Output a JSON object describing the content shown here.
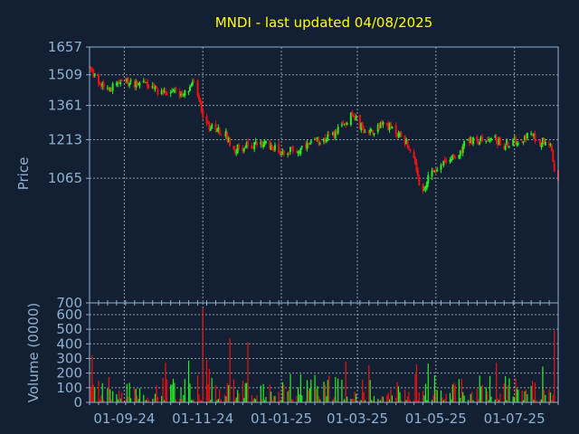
{
  "chart_data": {
    "type": "candlestick",
    "title": "MNDI - last updated 04/08/2025",
    "colors": {
      "background": "#132034",
      "axes": "#8fb0d0",
      "grid": "#ffffff",
      "title": "#ffff00",
      "up": "#22ee22",
      "down": "#ee1111"
    },
    "price_panel": {
      "ylabel": "Price",
      "yticks": [
        700,
        1065,
        1213,
        1361,
        1509,
        1657
      ],
      "grid": true,
      "scale": "log",
      "ylim": [
        700,
        1657
      ]
    },
    "volume_panel": {
      "ylabel": "Volume (0000)",
      "yticks": [
        0,
        100,
        200,
        300,
        400,
        500,
        600
      ],
      "ylim": [
        0,
        680
      ],
      "grid": true
    },
    "xticks": [
      "01-09-24",
      "01-11-24",
      "01-01-25",
      "01-03-25",
      "01-05-25",
      "01-07-25"
    ],
    "x_start": "2024-08-05",
    "x_end": "2025-08-04",
    "close_path": [
      [
        "2024-08-05",
        1540
      ],
      [
        "2024-08-12",
        1470
      ],
      [
        "2024-08-19",
        1442
      ],
      [
        "2024-08-26",
        1460
      ],
      [
        "2024-09-02",
        1472
      ],
      [
        "2024-09-09",
        1468
      ],
      [
        "2024-09-16",
        1478
      ],
      [
        "2024-09-23",
        1440
      ],
      [
        "2024-09-30",
        1425
      ],
      [
        "2024-10-07",
        1430
      ],
      [
        "2024-10-14",
        1418
      ],
      [
        "2024-10-21",
        1440
      ],
      [
        "2024-10-24",
        1470
      ],
      [
        "2024-10-28",
        1400
      ],
      [
        "2024-11-04",
        1265
      ],
      [
        "2024-11-11",
        1255
      ],
      [
        "2024-11-18",
        1245
      ],
      [
        "2024-11-25",
        1175
      ],
      [
        "2024-12-02",
        1182
      ],
      [
        "2024-12-09",
        1190
      ],
      [
        "2024-12-16",
        1196
      ],
      [
        "2024-12-23",
        1192
      ],
      [
        "2025-01-01",
        1162
      ],
      [
        "2025-01-08",
        1172
      ],
      [
        "2025-01-15",
        1168
      ],
      [
        "2025-01-22",
        1188
      ],
      [
        "2025-02-01",
        1215
      ],
      [
        "2025-02-10",
        1230
      ],
      [
        "2025-02-17",
        1265
      ],
      [
        "2025-02-24",
        1320
      ],
      [
        "2025-03-01",
        1290
      ],
      [
        "2025-03-08",
        1238
      ],
      [
        "2025-03-15",
        1260
      ],
      [
        "2025-03-22",
        1285
      ],
      [
        "2025-03-29",
        1250
      ],
      [
        "2025-04-05",
        1225
      ],
      [
        "2025-04-12",
        1170
      ],
      [
        "2025-04-18",
        1040
      ],
      [
        "2025-04-22",
        1020
      ],
      [
        "2025-04-26",
        1085
      ],
      [
        "2025-05-03",
        1100
      ],
      [
        "2025-05-10",
        1135
      ],
      [
        "2025-05-17",
        1140
      ],
      [
        "2025-05-24",
        1210
      ],
      [
        "2025-06-01",
        1205
      ],
      [
        "2025-06-08",
        1212
      ],
      [
        "2025-06-15",
        1218
      ],
      [
        "2025-06-22",
        1188
      ],
      [
        "2025-06-29",
        1205
      ],
      [
        "2025-07-06",
        1215
      ],
      [
        "2025-07-13",
        1235
      ],
      [
        "2025-07-20",
        1205
      ],
      [
        "2025-07-27",
        1210
      ],
      [
        "2025-07-30",
        1185
      ],
      [
        "2025-08-01",
        1085
      ],
      [
        "2025-08-04",
        1045
      ]
    ],
    "volume_spikes": [
      [
        "2024-08-07",
        320
      ],
      [
        "2024-10-03",
        270
      ],
      [
        "2024-10-21",
        285
      ],
      [
        "2024-11-01",
        645
      ],
      [
        "2024-11-04",
        290
      ],
      [
        "2024-11-06",
        230
      ],
      [
        "2024-11-22",
        440
      ],
      [
        "2024-12-06",
        410
      ],
      [
        "2025-02-20",
        280
      ],
      [
        "2025-03-10",
        255
      ],
      [
        "2025-04-16",
        260
      ],
      [
        "2025-04-25",
        265
      ],
      [
        "2025-06-17",
        270
      ],
      [
        "2025-07-23",
        245
      ],
      [
        "2025-08-01",
        490
      ]
    ]
  }
}
